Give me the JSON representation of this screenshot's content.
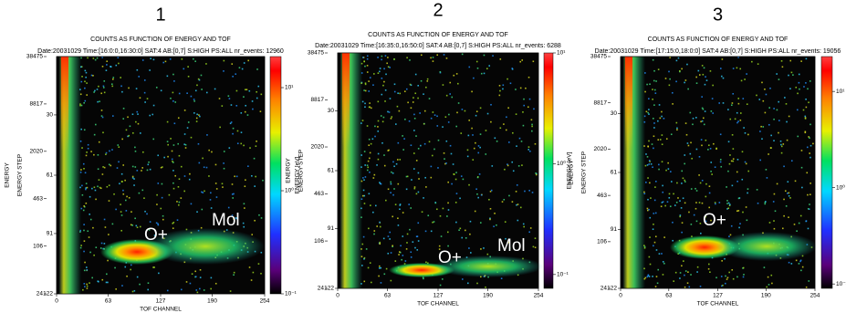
{
  "chart_data": [
    {
      "type": "heatmap",
      "label": "1",
      "title": "COUNTS AS FUNCTION OF ENERGY AND TOF",
      "subtitle": "Date:20031029  Time:[16:0:0,16:30:0]  SAT:4  AB:[0,7] S:HIGH PS:ALL  nr_events: 12960",
      "xlabel": "TOF CHANNEL",
      "ylabel": "ENERGY STEP",
      "y2label": "ENERGY",
      "colorbar_label": "ENERGY [eV]",
      "xlim": [
        0,
        254
      ],
      "xticks": [
        0,
        63,
        127,
        190,
        254
      ],
      "ylim": [
        122,
        0
      ],
      "yticks": [
        30,
        61,
        91,
        122
      ],
      "y2lim": [
        24,
        38475
      ],
      "y2ticks": [
        24,
        106,
        463,
        2020,
        8817,
        38475
      ],
      "y2log": true,
      "clim": [
        0.1,
        20
      ],
      "clog": true,
      "cticks": [
        {
          "value": 10,
          "label": "10¹"
        },
        {
          "value": 1,
          "label": "10⁰"
        },
        {
          "value": 0.1,
          "label": "10⁻¹"
        }
      ],
      "annotations": [
        {
          "text": "O+"
        },
        {
          "text": "Mol"
        }
      ]
    },
    {
      "type": "heatmap",
      "label": "2",
      "title": "COUNTS AS FUNCTION OF ENERGY AND TOF",
      "subtitle": "Date:20031029  Time:[16:35:0,16:50:0]  SAT:4  AB:[0,7] S:HIGH PS:ALL  nr_events: 6288",
      "xlabel": "TOF CHANNEL",
      "ylabel": "ENERGY STEP",
      "y2label": "ENERGY",
      "colorbar_label": "ENERGY [eV]",
      "xlim": [
        0,
        254
      ],
      "xticks": [
        0,
        63,
        127,
        190,
        254
      ],
      "ylim": [
        122,
        0
      ],
      "yticks": [
        30,
        61,
        91,
        122
      ],
      "y2lim": [
        24,
        38475
      ],
      "y2ticks": [
        24,
        106,
        463,
        2020,
        8817,
        38475
      ],
      "y2log": true,
      "clim": [
        0.075,
        10
      ],
      "clog": true,
      "cticks": [
        {
          "value": 10,
          "label": "10¹"
        },
        {
          "value": 1,
          "label": "10⁰"
        },
        {
          "value": 0.1,
          "label": "10⁻¹"
        }
      ],
      "annotations": [
        {
          "text": "O+"
        },
        {
          "text": "Mol"
        }
      ]
    },
    {
      "type": "heatmap",
      "label": "3",
      "title": "COUNTS AS FUNCTION OF ENERGY AND TOF",
      "subtitle": "Date:20031029  Time:[17:15:0,18:0:0]  SAT:4  AB:[0,7] S:HIGH PS:ALL  nr_events: 19056",
      "xlabel": "TOF CHANNEL",
      "ylabel": "ENERGY STEP",
      "y2label": "ENERGY",
      "colorbar_label": "ENERGY [eV]",
      "xlim": [
        0,
        254
      ],
      "xticks": [
        0,
        63,
        127,
        190,
        254
      ],
      "ylim": [
        122,
        0
      ],
      "yticks": [
        30,
        61,
        91,
        122
      ],
      "y2lim": [
        24,
        38475
      ],
      "y2ticks": [
        24,
        106,
        463,
        2020,
        8817,
        38475
      ],
      "y2log": true,
      "clim": [
        0.09,
        23
      ],
      "clog": true,
      "cticks": [
        {
          "value": 10,
          "label": "10¹"
        },
        {
          "value": 1,
          "label": "10⁰"
        },
        {
          "value": 0.1,
          "label": "10⁻¹"
        }
      ],
      "annotations": [
        {
          "text": "O+"
        }
      ]
    }
  ]
}
